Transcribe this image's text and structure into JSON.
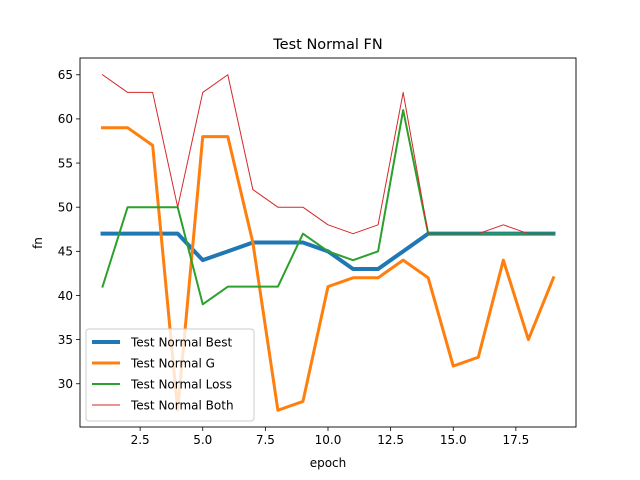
{
  "chart_data": {
    "type": "line",
    "title": "Test Normal FN",
    "xlabel": "epoch",
    "ylabel": "fn",
    "xlim": [
      0.1,
      19.9
    ],
    "ylim": [
      25.1,
      66.9
    ],
    "xticks": [
      2.5,
      5.0,
      7.5,
      10.0,
      12.5,
      15.0,
      17.5
    ],
    "xtick_labels": [
      "2.5",
      "5.0",
      "7.5",
      "10.0",
      "12.5",
      "15.0",
      "17.5"
    ],
    "yticks": [
      30,
      35,
      40,
      45,
      50,
      55,
      60,
      65
    ],
    "ytick_labels": [
      "30",
      "35",
      "40",
      "45",
      "50",
      "55",
      "60",
      "65"
    ],
    "grid": false,
    "legend_position": "lower-left",
    "x": [
      1,
      2,
      3,
      4,
      5,
      6,
      7,
      8,
      9,
      10,
      11,
      12,
      13,
      14,
      15,
      16,
      17,
      18,
      19
    ],
    "series": [
      {
        "name": "Test Normal Best",
        "color": "#1f77b4",
        "width": 4,
        "values": [
          47,
          47,
          47,
          47,
          44,
          45,
          46,
          46,
          46,
          45,
          43,
          43,
          45,
          47,
          47,
          47,
          47,
          47,
          47
        ]
      },
      {
        "name": "Test Normal G",
        "color": "#ff7f0e",
        "width": 3,
        "values": [
          59,
          59,
          57,
          27,
          58,
          58,
          46,
          27,
          28,
          41,
          42,
          42,
          44,
          42,
          32,
          33,
          44,
          35,
          42
        ]
      },
      {
        "name": "Test Normal Loss",
        "color": "#2ca02c",
        "width": 2,
        "values": [
          41,
          50,
          50,
          50,
          39,
          41,
          41,
          41,
          47,
          45,
          44,
          45,
          61,
          47,
          47,
          47,
          47,
          47,
          47
        ]
      },
      {
        "name": "Test Normal Both",
        "color": "#d62728",
        "width": 1,
        "values": [
          65,
          63,
          63,
          50,
          63,
          65,
          52,
          50,
          50,
          48,
          47,
          48,
          63,
          47,
          47,
          47,
          48,
          47,
          47
        ]
      }
    ]
  }
}
